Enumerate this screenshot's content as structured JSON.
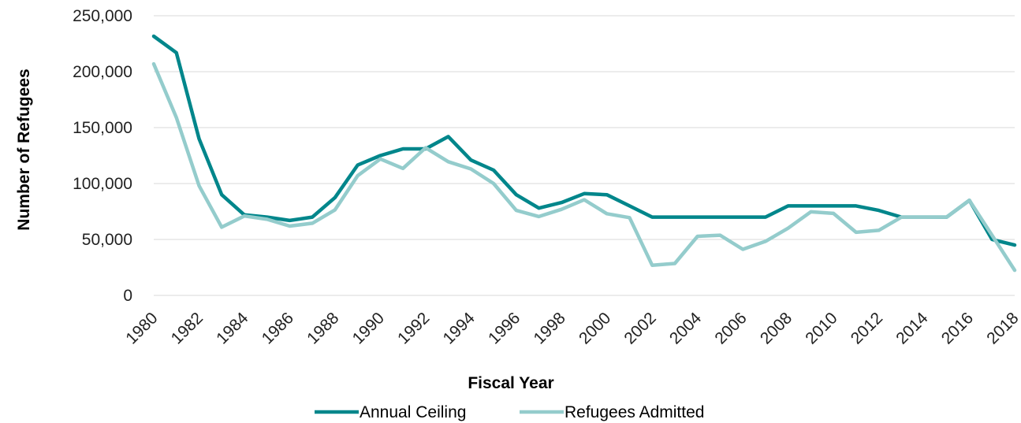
{
  "chart_data": {
    "type": "line",
    "title": "",
    "xlabel": "Fiscal Year",
    "ylabel": "Number of Refugees",
    "ylim": [
      0,
      250000
    ],
    "yticks": [
      0,
      50000,
      100000,
      150000,
      200000,
      250000
    ],
    "ytick_labels": [
      "0",
      "50,000",
      "100,000",
      "150,000",
      "200,000",
      "250,000"
    ],
    "xtick_labels": [
      "1980",
      "1982",
      "1984",
      "1986",
      "1988",
      "1990",
      "1992",
      "1994",
      "1996",
      "1998",
      "2000",
      "2002",
      "2004",
      "2006",
      "2008",
      "2010",
      "2012",
      "2014",
      "2016",
      "2018"
    ],
    "grid": "horizontal",
    "legend_position": "bottom",
    "x": [
      1980,
      1981,
      1982,
      1983,
      1984,
      1985,
      1986,
      1987,
      1988,
      1989,
      1990,
      1991,
      1992,
      1993,
      1994,
      1995,
      1996,
      1997,
      1998,
      1999,
      2000,
      2001,
      2002,
      2003,
      2004,
      2005,
      2006,
      2007,
      2008,
      2009,
      2010,
      2011,
      2012,
      2013,
      2014,
      2015,
      2016,
      2017,
      2018
    ],
    "series": [
      {
        "name": "Annual Ceiling",
        "color": "#00868b",
        "values": [
          231700,
          217000,
          140000,
          90000,
          72000,
          70000,
          67000,
          70000,
          87500,
          116500,
          125000,
          131000,
          131000,
          142000,
          121000,
          112000,
          90000,
          78000,
          83000,
          91000,
          90000,
          80000,
          70000,
          70000,
          70000,
          70000,
          70000,
          70000,
          80000,
          80000,
          80000,
          80000,
          76000,
          70000,
          70000,
          70000,
          85000,
          50000,
          45000
        ]
      },
      {
        "name": "Refugees Admitted",
        "color": "#94cccc",
        "values": [
          207000,
          159000,
          98000,
          61000,
          71000,
          68000,
          62000,
          64500,
          76500,
          107000,
          122000,
          113500,
          132000,
          119500,
          113000,
          100000,
          76000,
          70500,
          77000,
          85500,
          73000,
          69500,
          27000,
          28500,
          52800,
          53800,
          41200,
          48300,
          60100,
          74700,
          73300,
          56400,
          58200,
          69900,
          69900,
          70000,
          85000,
          53700,
          22500
        ]
      }
    ]
  }
}
